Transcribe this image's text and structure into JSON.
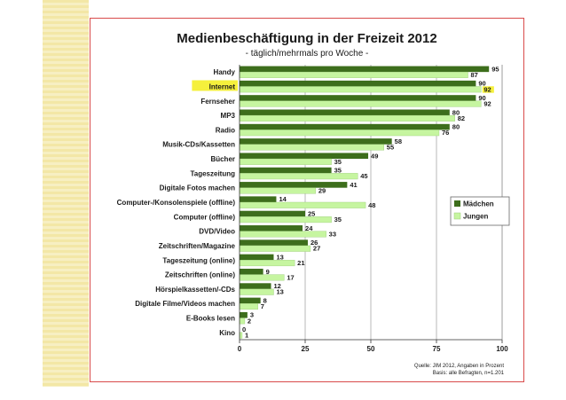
{
  "chart_data": {
    "type": "bar",
    "orientation": "horizontal",
    "title": "Medienbeschäftigung in der Freizeit 2012",
    "subtitle": "- täglich/mehrmals pro Woche -",
    "categories": [
      "Handy",
      "Internet",
      "Fernseher",
      "MP3",
      "Radio",
      "Musik-CDs/Kassetten",
      "Bücher",
      "Tageszeitung",
      "Digitale Fotos machen",
      "Computer-/Konsolenspiele (offline)",
      "Computer (offline)",
      "DVD/Video",
      "Zeitschriften/Magazine",
      "Tageszeitung (online)",
      "Zeitschriften (online)",
      "Hörspielkassetten/-CDs",
      "Digitale Filme/Videos machen",
      "E-Books lesen",
      "Kino"
    ],
    "highlighted_category": "Internet",
    "series": [
      {
        "name": "Mädchen",
        "color": "#3d6e1c",
        "values": [
          95,
          90,
          90,
          80,
          80,
          58,
          49,
          35,
          41,
          14,
          25,
          24,
          26,
          13,
          9,
          12,
          8,
          3,
          0
        ]
      },
      {
        "name": "Jungen",
        "color": "#c6f5a0",
        "values": [
          87,
          92,
          92,
          82,
          76,
          55,
          35,
          45,
          29,
          48,
          35,
          33,
          27,
          21,
          17,
          13,
          7,
          2,
          1
        ]
      }
    ],
    "highlighted_values": [
      {
        "series": "Jungen",
        "category": "Internet"
      }
    ],
    "xlim": [
      0,
      100
    ],
    "xticks": [
      "0",
      "25",
      "50",
      "75",
      "100"
    ],
    "grid": true,
    "legend_position": "right",
    "source": "Quelle: JIM 2012, Angaben in Prozent",
    "base": "Basis: alle Befragten, n=1.201"
  }
}
